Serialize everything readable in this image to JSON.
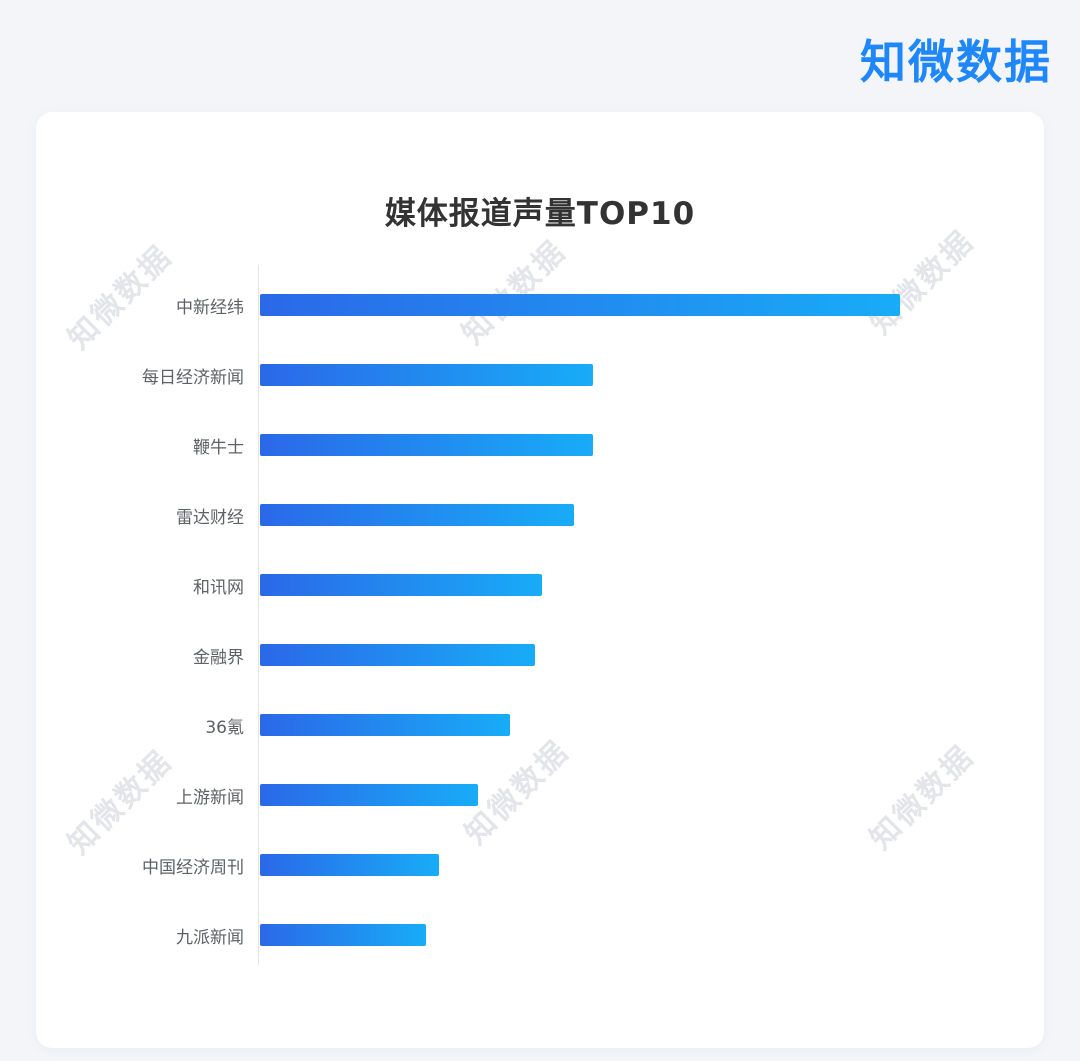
{
  "logo": {
    "text": "知微数据",
    "color": "#1e87fb"
  },
  "watermark": {
    "text": "知微数据"
  },
  "chart_data": {
    "type": "bar",
    "orientation": "horizontal",
    "title": "媒体报道声量TOP10",
    "categories": [
      "中新经纬",
      "每日经济新闻",
      "鞭牛士",
      "雷达财经",
      "和讯网",
      "金融界",
      "36氪",
      "上游新闻",
      "中国经济周刊",
      "九派新闻"
    ],
    "values": [
      100,
      52,
      52,
      49,
      44,
      43,
      39,
      34,
      28,
      26
    ],
    "xlim": [
      0,
      100
    ],
    "xlabel": "",
    "ylabel": "",
    "grid": false,
    "legend": false,
    "data_labels": false,
    "bar_gradient": [
      "#2b68e8",
      "#18acf7"
    ]
  }
}
